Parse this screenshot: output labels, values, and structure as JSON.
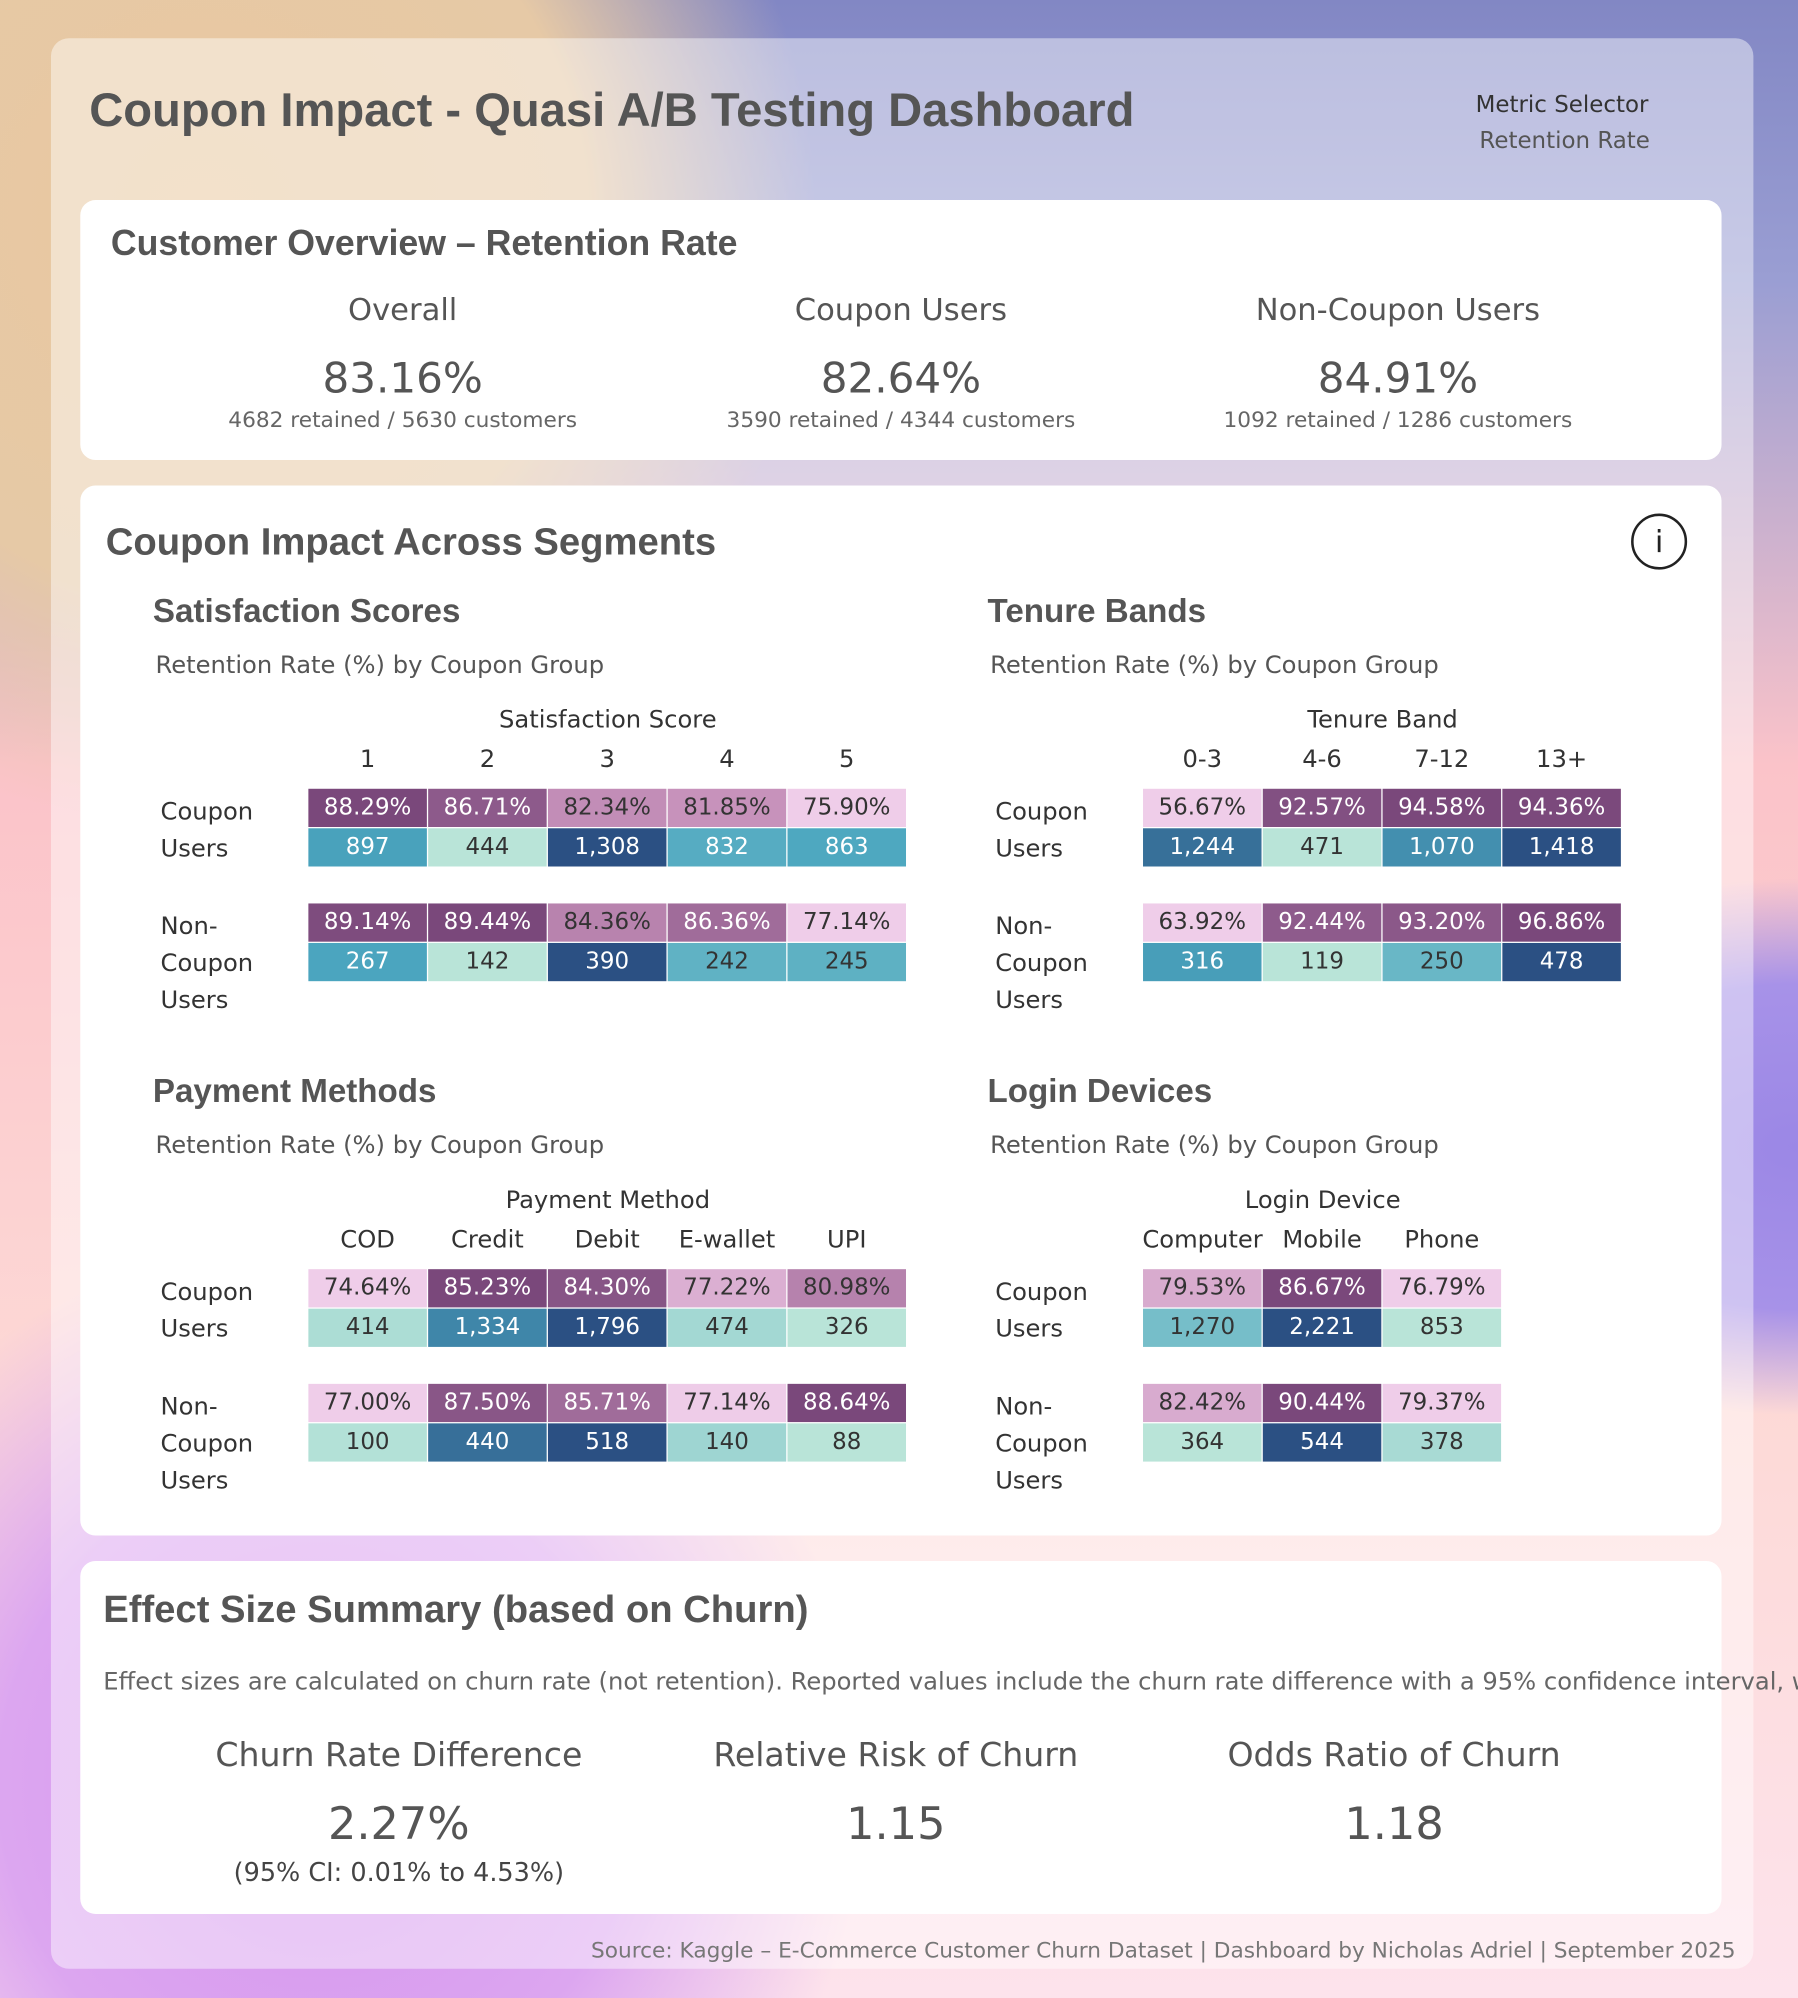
{
  "header": {
    "title": "Coupon Impact - Quasi A/B Testing Dashboard",
    "metric_selector_label": "Metric Selector",
    "metric_selector_value": "Retention Rate"
  },
  "overview": {
    "title": "Customer Overview – Retention Rate",
    "cards": [
      {
        "label": "Overall",
        "value": "83.16%",
        "detail": "4682 retained / 5630 customers"
      },
      {
        "label": "Coupon Users",
        "value": "82.64%",
        "detail": "3590 retained / 4344 customers"
      },
      {
        "label": "Non-Coupon Users",
        "value": "84.91%",
        "detail": "1092 retained / 1286 customers"
      }
    ]
  },
  "segments": {
    "title": "Coupon Impact Across Segments",
    "info_icon": "i",
    "panels": [
      {
        "title": "Satisfaction Scores",
        "subtitle": "Retention Rate (%) by Coupon Group",
        "column_header": "Satisfaction Score",
        "columns": [
          "1",
          "2",
          "3",
          "4",
          "5"
        ],
        "rows": [
          {
            "label": "Coupon Users",
            "rates": [
              "88.29%",
              "86.71%",
              "82.34%",
              "81.85%",
              "75.90%"
            ],
            "counts": [
              "897",
              "444",
              "1,308",
              "832",
              "863"
            ]
          },
          {
            "label": "Non-Coupon Users",
            "rates": [
              "89.14%",
              "89.44%",
              "84.36%",
              "86.36%",
              "77.14%"
            ],
            "counts": [
              "267",
              "142",
              "390",
              "242",
              "245"
            ]
          }
        ]
      },
      {
        "title": "Tenure Bands",
        "subtitle": "Retention Rate (%) by Coupon Group",
        "column_header": "Tenure Band",
        "columns": [
          "0-3",
          "4-6",
          "7-12",
          "13+"
        ],
        "rows": [
          {
            "label": "Coupon Users",
            "rates": [
              "56.67%",
              "92.57%",
              "94.58%",
              "94.36%"
            ],
            "counts": [
              "1,244",
              "471",
              "1,070",
              "1,418"
            ]
          },
          {
            "label": "Non-Coupon Users",
            "rates": [
              "63.92%",
              "92.44%",
              "93.20%",
              "96.86%"
            ],
            "counts": [
              "316",
              "119",
              "250",
              "478"
            ]
          }
        ]
      },
      {
        "title": "Payment Methods",
        "subtitle": "Retention Rate (%) by Coupon Group",
        "column_header": "Payment Method",
        "columns": [
          "COD",
          "Credit",
          "Debit",
          "E-wallet",
          "UPI"
        ],
        "rows": [
          {
            "label": "Coupon Users",
            "rates": [
              "74.64%",
              "85.23%",
              "84.30%",
              "77.22%",
              "80.98%"
            ],
            "counts": [
              "414",
              "1,334",
              "1,796",
              "474",
              "326"
            ]
          },
          {
            "label": "Non-Coupon Users",
            "rates": [
              "77.00%",
              "87.50%",
              "85.71%",
              "77.14%",
              "88.64%"
            ],
            "counts": [
              "100",
              "440",
              "518",
              "140",
              "88"
            ]
          }
        ]
      },
      {
        "title": "Login Devices",
        "subtitle": "Retention Rate (%) by Coupon Group",
        "column_header": "Login Device",
        "columns": [
          "Computer",
          "Mobile",
          "Phone"
        ],
        "rows": [
          {
            "label": "Coupon Users",
            "rates": [
              "79.53%",
              "86.67%",
              "76.79%"
            ],
            "counts": [
              "1,270",
              "2,221",
              "853"
            ]
          },
          {
            "label": "Non-Coupon Users",
            "rates": [
              "82.42%",
              "90.44%",
              "79.37%"
            ],
            "counts": [
              "364",
              "544",
              "378"
            ]
          }
        ]
      }
    ]
  },
  "effect": {
    "title": "Effect Size Summary (based on Churn)",
    "description": "Effect sizes are calculated on churn rate (not retention). Reported values include the churn rate difference with a 95% confidence interval, w..",
    "metrics": [
      {
        "label": "Churn Rate Difference",
        "value": "2.27%",
        "note": "(95% CI: 0.01% to 4.53%)"
      },
      {
        "label": "Relative Risk of Churn",
        "value": "1.15"
      },
      {
        "label": "Odds Ratio of Churn",
        "value": "1.18"
      }
    ]
  },
  "footer": {
    "source": "Source: Kaggle – E-Commerce Customer Churn Dataset | Dashboard by Nicholas Adriel | September 2025"
  }
}
